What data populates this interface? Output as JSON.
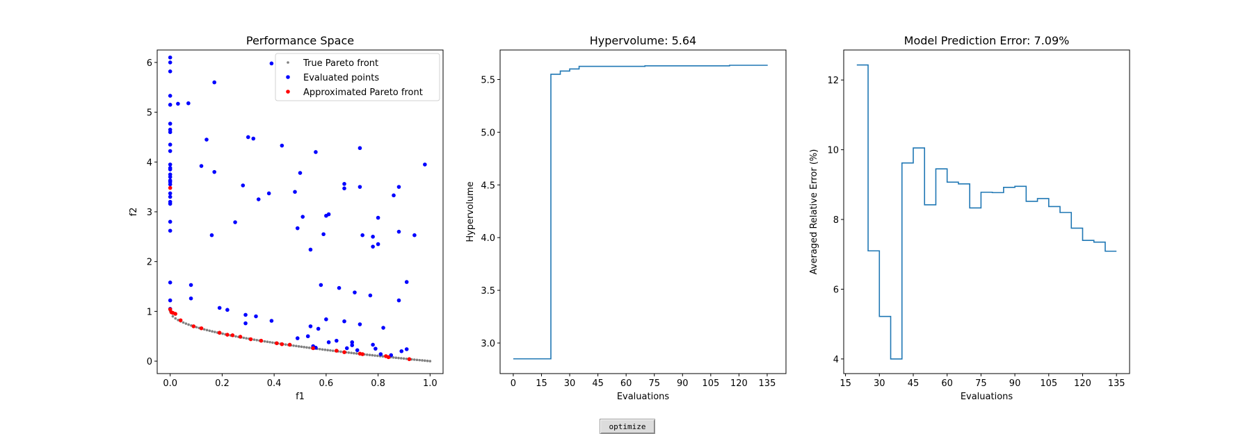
{
  "controls": {
    "optimize_label": "optimize"
  },
  "colors": {
    "true_front": "#808080",
    "evaluated": "#0000ff",
    "approx_front": "#ff0000",
    "line": "#1f77b4",
    "axes": "#000000",
    "legend_border": "#d0d0d0"
  },
  "chart_data": [
    {
      "id": "performance",
      "type": "scatter",
      "title": "Performance Space",
      "xlabel": "f1",
      "ylabel": "f2",
      "xlim": [
        -0.05,
        1.05
      ],
      "ylim": [
        -0.25,
        6.25
      ],
      "xticks": [
        "0.0",
        "0.2",
        "0.4",
        "0.6",
        "0.8",
        "1.0"
      ],
      "xtick_values": [
        0,
        0.2,
        0.4,
        0.6,
        0.8,
        1.0
      ],
      "yticks": [
        "0",
        "1",
        "2",
        "3",
        "4",
        "5",
        "6"
      ],
      "ytick_values": [
        0,
        1,
        2,
        3,
        4,
        5,
        6
      ],
      "legend_position": "top-right",
      "series": [
        {
          "name": "True Pareto front",
          "color": "#808080",
          "kind": "curve",
          "function": "f2 = 1 - sqrt(f1)",
          "points_count": 100,
          "x_range": [
            0,
            1
          ]
        },
        {
          "name": "Evaluated points",
          "color": "#0000ff",
          "points": [
            [
              0,
              6.1
            ],
            [
              0,
              6.0
            ],
            [
              0,
              5.82
            ],
            [
              0,
              5.33
            ],
            [
              0,
              5.15
            ],
            [
              0.03,
              5.17
            ],
            [
              0.07,
              5.18
            ],
            [
              0,
              4.77
            ],
            [
              0,
              4.65
            ],
            [
              0,
              4.6
            ],
            [
              0,
              4.35
            ],
            [
              0,
              4.22
            ],
            [
              0,
              3.95
            ],
            [
              0,
              3.88
            ],
            [
              0,
              3.85
            ],
            [
              0,
              3.75
            ],
            [
              0,
              3.7
            ],
            [
              0,
              3.63
            ],
            [
              0,
              3.6
            ],
            [
              0,
              3.55
            ],
            [
              0,
              3.37
            ],
            [
              0,
              3.3
            ],
            [
              0,
              3.2
            ],
            [
              0,
              3.16
            ],
            [
              0,
              2.8
            ],
            [
              0,
              2.62
            ],
            [
              0,
              1.58
            ],
            [
              0,
              1.22
            ],
            [
              0,
              1.05
            ],
            [
              0.17,
              5.6
            ],
            [
              0.39,
              5.98
            ],
            [
              0.14,
              4.45
            ],
            [
              0.3,
              4.5
            ],
            [
              0.32,
              4.47
            ],
            [
              0.43,
              4.33
            ],
            [
              0.56,
              4.2
            ],
            [
              0.73,
              4.28
            ],
            [
              0.98,
              3.95
            ],
            [
              0.12,
              3.92
            ],
            [
              0.17,
              3.8
            ],
            [
              0.5,
              3.78
            ],
            [
              0.28,
              3.53
            ],
            [
              0.38,
              3.37
            ],
            [
              0.34,
              3.25
            ],
            [
              0.48,
              3.4
            ],
            [
              0.67,
              3.56
            ],
            [
              0.67,
              3.47
            ],
            [
              0.73,
              3.5
            ],
            [
              0.86,
              3.33
            ],
            [
              0.88,
              3.5
            ],
            [
              0.51,
              2.9
            ],
            [
              0.6,
              2.92
            ],
            [
              0.61,
              2.95
            ],
            [
              0.8,
              2.88
            ],
            [
              0.49,
              2.67
            ],
            [
              0.25,
              2.79
            ],
            [
              0.16,
              2.53
            ],
            [
              0.59,
              2.55
            ],
            [
              0.74,
              2.53
            ],
            [
              0.78,
              2.5
            ],
            [
              0.88,
              2.6
            ],
            [
              0.94,
              2.53
            ],
            [
              0.78,
              2.3
            ],
            [
              0.8,
              2.35
            ],
            [
              0.54,
              2.24
            ],
            [
              0.08,
              1.53
            ],
            [
              0.19,
              1.07
            ],
            [
              0.22,
              1.03
            ],
            [
              0.29,
              0.93
            ],
            [
              0.33,
              0.9
            ],
            [
              0.29,
              0.76
            ],
            [
              0.39,
              0.81
            ],
            [
              0.58,
              1.53
            ],
            [
              0.65,
              1.47
            ],
            [
              0.71,
              1.38
            ],
            [
              0.77,
              1.32
            ],
            [
              0.88,
              1.22
            ],
            [
              0.91,
              1.59
            ],
            [
              0.08,
              1.26
            ],
            [
              0.6,
              0.84
            ],
            [
              0.67,
              0.8
            ],
            [
              0.73,
              0.74
            ],
            [
              0.82,
              0.67
            ],
            [
              0.54,
              0.7
            ],
            [
              0.57,
              0.65
            ],
            [
              0.49,
              0.46
            ],
            [
              0.53,
              0.5
            ],
            [
              0.64,
              0.41
            ],
            [
              0.7,
              0.38
            ],
            [
              0.7,
              0.32
            ],
            [
              0.61,
              0.38
            ],
            [
              0.68,
              0.26
            ],
            [
              0.72,
              0.22
            ],
            [
              0.78,
              0.33
            ],
            [
              0.79,
              0.25
            ],
            [
              0.81,
              0.14
            ],
            [
              0.85,
              0.12
            ],
            [
              0.89,
              0.2
            ],
            [
              0.91,
              0.24
            ],
            [
              0.55,
              0.3
            ],
            [
              0.56,
              0.27
            ]
          ]
        },
        {
          "name": "Approximated Pareto front",
          "color": "#ff0000",
          "points": [
            [
              0,
              3.48
            ],
            [
              0,
              1.04
            ],
            [
              0.005,
              0.98
            ],
            [
              0.01,
              0.97
            ],
            [
              0.02,
              0.95
            ],
            [
              0.04,
              0.82
            ],
            [
              0.09,
              0.7
            ],
            [
              0.12,
              0.66
            ],
            [
              0.19,
              0.57
            ],
            [
              0.22,
              0.53
            ],
            [
              0.24,
              0.52
            ],
            [
              0.27,
              0.49
            ],
            [
              0.31,
              0.44
            ],
            [
              0.35,
              0.41
            ],
            [
              0.41,
              0.36
            ],
            [
              0.43,
              0.34
            ],
            [
              0.46,
              0.33
            ],
            [
              0.55,
              0.26
            ],
            [
              0.64,
              0.21
            ],
            [
              0.67,
              0.18
            ],
            [
              0.73,
              0.15
            ],
            [
              0.74,
              0.14
            ],
            [
              0.83,
              0.1
            ],
            [
              0.84,
              0.08
            ],
            [
              0.92,
              0.04
            ]
          ]
        }
      ]
    },
    {
      "id": "hypervolume",
      "type": "line",
      "title": "Hypervolume: 5.64",
      "xlabel": "Evaluations",
      "ylabel": "Hypervolume",
      "xlim": [
        -7,
        145
      ],
      "ylim": [
        2.71,
        5.78
      ],
      "xticks": [
        "0",
        "15",
        "30",
        "45",
        "60",
        "75",
        "90",
        "105",
        "120",
        "135"
      ],
      "xtick_values": [
        0,
        15,
        30,
        45,
        60,
        75,
        90,
        105,
        120,
        135
      ],
      "yticks": [
        "3.0",
        "3.5",
        "4.0",
        "4.5",
        "5.0",
        "5.5"
      ],
      "ytick_values": [
        3.0,
        3.5,
        4.0,
        4.5,
        5.0,
        5.5
      ],
      "step": "post",
      "x": [
        0,
        20,
        22,
        25,
        30,
        35,
        70,
        115,
        135
      ],
      "y": [
        2.85,
        5.55,
        5.55,
        5.58,
        5.6,
        5.625,
        5.63,
        5.635,
        5.64
      ]
    },
    {
      "id": "model_error",
      "type": "line",
      "title": "Model Prediction Error: 7.09%",
      "xlabel": "Evaluations",
      "ylabel": "Averaged Relative Error (%)",
      "xlim": [
        14.2,
        140.8
      ],
      "ylim": [
        3.58,
        12.86
      ],
      "xticks": [
        "15",
        "30",
        "45",
        "60",
        "75",
        "90",
        "105",
        "120",
        "135"
      ],
      "xtick_values": [
        15,
        30,
        45,
        60,
        75,
        90,
        105,
        120,
        135
      ],
      "yticks": [
        "4",
        "6",
        "8",
        "10",
        "12"
      ],
      "ytick_values": [
        4,
        6,
        8,
        10,
        12
      ],
      "step": "post",
      "x": [
        20,
        25,
        30,
        35,
        40,
        45,
        50,
        55,
        60,
        65,
        70,
        75,
        80,
        85,
        90,
        95,
        100,
        105,
        110,
        115,
        120,
        125,
        130,
        135
      ],
      "y": [
        12.43,
        7.1,
        5.22,
        4.0,
        9.62,
        10.05,
        8.42,
        9.45,
        9.07,
        9.02,
        8.33,
        8.78,
        8.77,
        8.92,
        8.95,
        8.52,
        8.6,
        8.37,
        8.2,
        7.75,
        7.4,
        7.35,
        7.09,
        7.09
      ]
    }
  ]
}
